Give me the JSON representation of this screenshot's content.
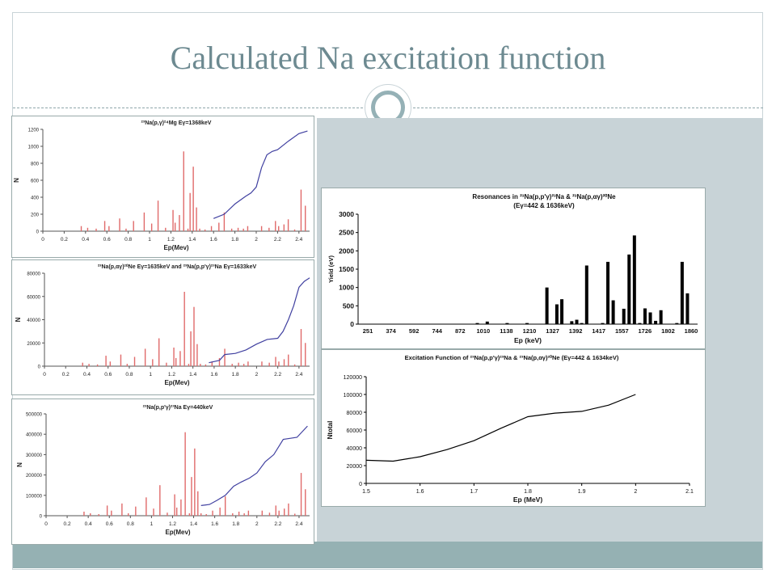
{
  "slide": {
    "title": "Calculated Na excitation function",
    "colors": {
      "title": "#6d8a91",
      "accent": "#95b1b6",
      "panel": "#c8d3d7",
      "band": "#95b1b3",
      "bars_left": "#e06a6a",
      "curve_left": "#4040a0",
      "bars_right": "#000000"
    }
  },
  "chart_data": [
    {
      "id": "na_mg",
      "type": "bar",
      "title": "²³Na(p,γ)²⁴Mg   Eγ=1368keV",
      "xlabel": "Ep(Mev)",
      "ylabel": "N",
      "xlim": [
        0,
        2.5
      ],
      "ylim": [
        0,
        1200
      ],
      "xticks": [
        "0",
        "0.2",
        "0.4",
        "0.6",
        "0.8",
        "1",
        "1.2",
        "1.4",
        "1.6",
        "1.8",
        "2",
        "2.2",
        "2.4"
      ],
      "yticks": [
        "0",
        "200",
        "400",
        "600",
        "800",
        "1000",
        "1200"
      ],
      "grid": false,
      "series": [
        {
          "kind": "bars",
          "x": [
            0.36,
            0.42,
            0.5,
            0.58,
            0.62,
            0.72,
            0.78,
            0.85,
            0.95,
            1.02,
            1.08,
            1.15,
            1.22,
            1.24,
            1.28,
            1.32,
            1.36,
            1.38,
            1.41,
            1.44,
            1.47,
            1.52,
            1.58,
            1.65,
            1.7,
            1.77,
            1.83,
            1.88,
            1.92,
            2.05,
            2.12,
            2.18,
            2.21,
            2.26,
            2.3,
            2.36,
            2.42,
            2.46
          ],
          "values": [
            60,
            40,
            30,
            120,
            60,
            150,
            30,
            120,
            220,
            90,
            360,
            40,
            250,
            100,
            190,
            940,
            30,
            450,
            760,
            280,
            30,
            20,
            60,
            100,
            220,
            30,
            40,
            30,
            60,
            60,
            40,
            120,
            60,
            80,
            140,
            20,
            490,
            300
          ]
        },
        {
          "kind": "line",
          "x": [
            1.6,
            1.7,
            1.8,
            1.9,
            1.95,
            2.0,
            2.05,
            2.1,
            2.15,
            2.2,
            2.3,
            2.4,
            2.48
          ],
          "values": [
            150,
            200,
            320,
            410,
            450,
            520,
            750,
            900,
            940,
            960,
            1060,
            1150,
            1180
          ]
        }
      ]
    },
    {
      "id": "na_ne",
      "type": "bar",
      "title": "²³Na(p,αγ)²⁰Ne  Eγ=1635keV and ²³Na(p,p'γ)²³Na  Eγ=1633keV",
      "xlabel": "Ep(Mev)",
      "ylabel": "N",
      "xlim": [
        0,
        2.5
      ],
      "ylim": [
        0,
        80000
      ],
      "xticks": [
        "0",
        "0.2",
        "0.4",
        "0.6",
        "0.8",
        "1",
        "1.2",
        "1.4",
        "1.6",
        "1.8",
        "2",
        "2.2",
        "2.4"
      ],
      "yticks": [
        "0",
        "20000",
        "40000",
        "60000",
        "80000"
      ],
      "grid": false,
      "series": [
        {
          "kind": "bars",
          "x": [
            0.36,
            0.42,
            0.5,
            0.58,
            0.62,
            0.72,
            0.78,
            0.85,
            0.95,
            1.02,
            1.08,
            1.15,
            1.22,
            1.24,
            1.28,
            1.32,
            1.36,
            1.38,
            1.41,
            1.44,
            1.47,
            1.52,
            1.58,
            1.65,
            1.7,
            1.77,
            1.83,
            1.88,
            1.92,
            2.05,
            2.12,
            2.18,
            2.21,
            2.26,
            2.3,
            2.36,
            2.42,
            2.46
          ],
          "values": [
            3000,
            2000,
            1500,
            9000,
            4000,
            10000,
            2000,
            8000,
            15000,
            6000,
            24000,
            3000,
            16000,
            7000,
            13000,
            64000,
            2000,
            30000,
            51000,
            19000,
            2000,
            1500,
            4000,
            7000,
            15000,
            2000,
            3000,
            2000,
            4000,
            4000,
            3000,
            8000,
            4000,
            6000,
            10000,
            1500,
            32000,
            20000
          ]
        },
        {
          "kind": "line",
          "x": [
            1.55,
            1.65,
            1.7,
            1.8,
            1.9,
            2.0,
            2.1,
            2.2,
            2.25,
            2.3,
            2.35,
            2.4,
            2.45,
            2.5
          ],
          "values": [
            3000,
            5000,
            10000,
            11000,
            14000,
            19000,
            23000,
            24000,
            30000,
            40000,
            52000,
            68000,
            73000,
            76000
          ]
        }
      ]
    },
    {
      "id": "na_na",
      "type": "bar",
      "title": "²³Na(p,p'γ)²³Na   Eγ=440keV",
      "xlabel": "Ep(Mev)",
      "ylabel": "N",
      "xlim": [
        0,
        2.5
      ],
      "ylim": [
        0,
        500000
      ],
      "xticks": [
        "0",
        "0.2",
        "0.4",
        "0.6",
        "0.8",
        "1",
        "1.2",
        "1.4",
        "1.6",
        "1.8",
        "2",
        "2.2",
        "2.4"
      ],
      "yticks": [
        "0",
        "100000",
        "200000",
        "300000",
        "400000",
        "500000"
      ],
      "grid": false,
      "series": [
        {
          "kind": "bars",
          "x": [
            0.36,
            0.42,
            0.5,
            0.58,
            0.62,
            0.72,
            0.78,
            0.85,
            0.95,
            1.02,
            1.08,
            1.15,
            1.22,
            1.24,
            1.28,
            1.32,
            1.36,
            1.38,
            1.41,
            1.44,
            1.47,
            1.52,
            1.58,
            1.65,
            1.7,
            1.77,
            1.83,
            1.88,
            1.92,
            2.05,
            2.12,
            2.18,
            2.21,
            2.26,
            2.3,
            2.36,
            2.42,
            2.46
          ],
          "values": [
            20000,
            12000,
            8000,
            50000,
            25000,
            60000,
            12000,
            45000,
            90000,
            35000,
            150000,
            15000,
            105000,
            40000,
            80000,
            410000,
            12000,
            190000,
            330000,
            120000,
            12000,
            8000,
            25000,
            40000,
            95000,
            12000,
            20000,
            12000,
            25000,
            25000,
            15000,
            50000,
            25000,
            35000,
            60000,
            10000,
            210000,
            130000
          ]
        },
        {
          "kind": "line",
          "x": [
            1.47,
            1.55,
            1.62,
            1.7,
            1.78,
            1.85,
            1.93,
            2.0,
            2.08,
            2.16,
            2.25,
            2.32,
            2.38,
            2.48
          ],
          "values": [
            50000,
            55000,
            75000,
            100000,
            145000,
            165000,
            185000,
            210000,
            265000,
            300000,
            375000,
            380000,
            385000,
            440000
          ]
        }
      ]
    },
    {
      "id": "resonances",
      "type": "bar",
      "title": "Resonances in ²³Na(p,p'γ)²³Na  &  ²³Na(p,αγ)²⁰Ne",
      "subtitle": "(Eγ=442 & 1636keV)",
      "xlabel": "Ep (keV)",
      "ylabel": "Yield (eV)",
      "ylim": [
        0,
        3000
      ],
      "yticks": [
        "0",
        "500",
        "1000",
        "1500",
        "2000",
        "2500",
        "3000"
      ],
      "xticks": [
        "251",
        "374",
        "592",
        "744",
        "872",
        "1010",
        "1138",
        "1210",
        "1327",
        "1392",
        "1417",
        "1557",
        "1726",
        "1802",
        "1860"
      ],
      "grid": false,
      "positions": [
        0.005,
        0.02,
        0.035,
        0.05,
        0.065,
        0.08,
        0.095,
        0.11,
        0.125,
        0.14,
        0.155,
        0.17,
        0.185,
        0.2,
        0.215,
        0.23,
        0.245,
        0.26,
        0.275,
        0.29,
        0.305,
        0.32,
        0.335,
        0.35,
        0.365,
        0.38,
        0.395,
        0.41,
        0.425,
        0.44,
        0.455,
        0.47,
        0.485,
        0.5,
        0.515,
        0.53,
        0.545,
        0.56,
        0.575,
        0.59,
        0.605,
        0.62,
        0.635,
        0.65,
        0.665,
        0.68,
        0.695,
        0.712,
        0.728,
        0.744,
        0.76,
        0.776,
        0.792,
        0.808,
        0.824,
        0.84,
        0.856,
        0.872,
        0.888,
        0.904,
        0.92,
        0.936,
        0.952,
        0.968,
        0.984,
        1.0
      ],
      "values": [
        10,
        10,
        10,
        10,
        10,
        10,
        10,
        10,
        10,
        10,
        10,
        10,
        10,
        10,
        10,
        10,
        10,
        10,
        10,
        10,
        10,
        10,
        10,
        30,
        10,
        70,
        10,
        10,
        10,
        30,
        10,
        10,
        10,
        30,
        10,
        10,
        10,
        1000,
        10,
        540,
        680,
        10,
        80,
        120,
        30,
        1600,
        10,
        10,
        30,
        1700,
        650,
        10,
        420,
        1900,
        2420,
        30,
        430,
        320,
        90,
        380,
        10,
        10,
        30,
        1700,
        840,
        10
      ],
      "bar_color": "#000000"
    },
    {
      "id": "excitation",
      "type": "line",
      "title": "Excitation Function of ²³Na(p,p'γ)²³Na & ²³Na(p,αγ)²⁰Ne     (Eγ=442 & 1634keV)",
      "xlabel": "Ep (MeV)",
      "ylabel": "Ntotal",
      "xlim": [
        1.5,
        2.1
      ],
      "ylim": [
        0,
        120000
      ],
      "xticks": [
        "1.5",
        "1.6",
        "1.7",
        "1.8",
        "1.9",
        "2",
        "2.1"
      ],
      "yticks": [
        "0",
        "20000",
        "40000",
        "60000",
        "80000",
        "100000",
        "120000"
      ],
      "grid": false,
      "series": [
        {
          "name": "",
          "x": [
            1.5,
            1.55,
            1.6,
            1.65,
            1.7,
            1.75,
            1.8,
            1.85,
            1.9,
            1.95,
            2.0
          ],
          "values": [
            26000,
            25000,
            30000,
            38000,
            48000,
            62000,
            75000,
            79000,
            81000,
            88000,
            100000
          ]
        }
      ]
    }
  ]
}
